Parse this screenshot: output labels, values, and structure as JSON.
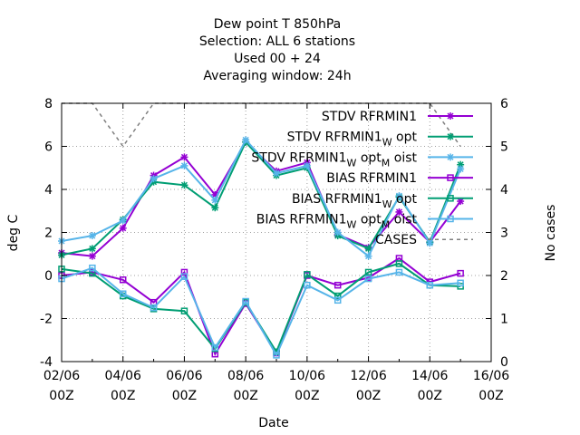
{
  "chart_data": {
    "type": "line",
    "title": [
      "Dew point T 850hPa",
      "Selection: ALL      6 stations",
      "Used  00 + 24",
      "Averaging window: 24h"
    ],
    "xlabel": "Date",
    "ylabel": "deg C",
    "y2label": "No cases",
    "ylim": [
      -4,
      8
    ],
    "y2lim": [
      0,
      6
    ],
    "yticks": [
      -4,
      -2,
      0,
      2,
      4,
      6,
      8
    ],
    "y2ticks": [
      0,
      1,
      2,
      3,
      4,
      5,
      6
    ],
    "xlim": [
      "02/06 00Z",
      "16/06 00Z"
    ],
    "xtick_labels": [
      [
        "02/06",
        "00Z"
      ],
      [
        "04/06",
        "00Z"
      ],
      [
        "06/06",
        "00Z"
      ],
      [
        "08/06",
        "00Z"
      ],
      [
        "10/06",
        "00Z"
      ],
      [
        "12/06",
        "00Z"
      ],
      [
        "14/06",
        "00Z"
      ],
      [
        "16/06",
        "00Z"
      ]
    ],
    "x": [
      "02/06 00Z",
      "03/06 00Z",
      "04/06 00Z",
      "05/06 00Z",
      "06/06 00Z",
      "07/06 00Z",
      "08/06 00Z",
      "09/06 00Z",
      "10/06 00Z",
      "11/06 00Z",
      "12/06 00Z",
      "13/06 00Z",
      "14/06 00Z",
      "15/06 00Z"
    ],
    "grid": true,
    "legend_position": "top-right",
    "series": [
      {
        "name": "STDV RFRMIN1",
        "legend": [
          [
            "STDV RFRMIN1",
            ""
          ]
        ],
        "color": "#9400d3",
        "marker": "star",
        "axis": "y1",
        "values": [
          1.05,
          0.9,
          2.2,
          4.65,
          5.5,
          3.75,
          6.2,
          4.85,
          5.25,
          1.9,
          1.3,
          2.95,
          1.55,
          3.45
        ]
      },
      {
        "name": "STDV RFRMIN1_W opt",
        "legend": [
          [
            "STDV RFRMIN1",
            ""
          ],
          [
            "W",
            "sub"
          ],
          [
            " opt",
            ""
          ]
        ],
        "color": "#009e73",
        "marker": "star",
        "axis": "y1",
        "values": [
          0.95,
          1.25,
          2.6,
          4.35,
          4.2,
          3.15,
          6.2,
          4.65,
          5.0,
          1.85,
          1.25,
          3.65,
          1.55,
          5.15
        ]
      },
      {
        "name": "STDV RFRMIN1_W opt_M oist",
        "legend": [
          [
            "STDV RFRMIN1",
            ""
          ],
          [
            "W",
            "sub"
          ],
          [
            " opt",
            ""
          ],
          [
            "M",
            "sub"
          ],
          [
            " oist",
            ""
          ]
        ],
        "color": "#56b4e9",
        "marker": "star",
        "axis": "y1",
        "values": [
          1.6,
          1.85,
          2.55,
          4.5,
          5.1,
          3.5,
          6.3,
          4.75,
          5.1,
          2.0,
          0.9,
          3.7,
          1.5,
          4.95
        ]
      },
      {
        "name": "BIAS RFRMIN1",
        "legend": [
          [
            "BIAS RFRMIN1",
            ""
          ]
        ],
        "color": "#9400d3",
        "marker": "square",
        "axis": "y1",
        "values": [
          0.0,
          0.15,
          -0.2,
          -1.25,
          0.15,
          -3.65,
          -1.3,
          -3.6,
          0.0,
          -0.45,
          -0.1,
          0.8,
          -0.3,
          0.1
        ]
      },
      {
        "name": "BIAS RFRMIN1_W opt",
        "legend": [
          [
            "BIAS RFRMIN1",
            ""
          ],
          [
            "W",
            "sub"
          ],
          [
            " opt",
            ""
          ]
        ],
        "color": "#009e73",
        "marker": "square",
        "axis": "y1",
        "values": [
          0.3,
          0.1,
          -0.95,
          -1.55,
          -1.65,
          -3.4,
          -1.25,
          -3.55,
          0.05,
          -0.95,
          0.15,
          0.55,
          -0.45,
          -0.5
        ]
      },
      {
        "name": "BIAS RFRMIN1_W opt_M oist",
        "legend": [
          [
            "BIAS RFRMIN1",
            ""
          ],
          [
            "W",
            "sub"
          ],
          [
            " opt",
            ""
          ],
          [
            "M",
            "sub"
          ],
          [
            " oist",
            ""
          ]
        ],
        "color": "#56b4e9",
        "marker": "square",
        "axis": "y1",
        "values": [
          -0.15,
          0.35,
          -0.85,
          -1.5,
          -0.05,
          -3.35,
          -1.2,
          -3.7,
          -0.45,
          -1.15,
          -0.15,
          0.15,
          -0.45,
          -0.35
        ]
      },
      {
        "name": "CASES",
        "legend": [
          [
            "CASES",
            ""
          ]
        ],
        "color": "#7f7f7f",
        "marker": "none",
        "dashed": true,
        "axis": "y2",
        "values": [
          6,
          6,
          5,
          6,
          6,
          6,
          6,
          6,
          6,
          6,
          6,
          6,
          6,
          5
        ]
      }
    ]
  }
}
